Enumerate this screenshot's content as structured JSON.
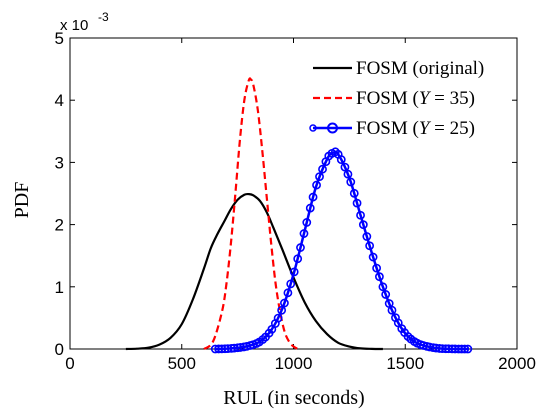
{
  "chart_data": {
    "type": "line",
    "xlabel": "RUL (in seconds)",
    "ylabel": "PDF",
    "xlim": [
      0,
      2000
    ],
    "ylim": [
      0,
      5
    ],
    "y_multiplier_label": "x 10",
    "y_multiplier_exponent": "-3",
    "xticks": [
      0,
      500,
      1000,
      1500,
      2000
    ],
    "yticks": [
      0,
      1,
      2,
      3,
      4,
      5
    ],
    "grid": false,
    "legend_position": "top-right",
    "series": [
      {
        "name": "FOSM (original)",
        "color": "#000000",
        "dash": "solid",
        "marker": "none",
        "x": [
          250,
          300,
          350,
          400,
          450,
          500,
          550,
          600,
          630,
          660,
          690,
          720,
          750,
          780,
          800,
          820,
          850,
          880,
          910,
          950,
          1000,
          1050,
          1100,
          1150,
          1200,
          1250,
          1300,
          1350,
          1400
        ],
        "y": [
          0.0,
          0.005,
          0.02,
          0.07,
          0.18,
          0.4,
          0.8,
          1.3,
          1.62,
          1.85,
          2.05,
          2.25,
          2.4,
          2.48,
          2.49,
          2.47,
          2.38,
          2.2,
          1.95,
          1.6,
          1.15,
          0.75,
          0.45,
          0.24,
          0.1,
          0.04,
          0.01,
          0.002,
          0.0
        ]
      },
      {
        "name": "FOSM (Y = 35)",
        "name_parts": [
          "FOSM (",
          "Y",
          " = 35)"
        ],
        "color": "#ff0000",
        "dash": "dashed",
        "marker": "none",
        "x": [
          600,
          640,
          680,
          700,
          720,
          740,
          760,
          780,
          800,
          810,
          820,
          840,
          860,
          880,
          900,
          920,
          940,
          960,
          980,
          1000,
          1020
        ],
        "y": [
          0.0,
          0.12,
          0.6,
          1.05,
          1.7,
          2.5,
          3.35,
          4.0,
          4.32,
          4.33,
          4.25,
          3.85,
          3.2,
          2.45,
          1.7,
          1.05,
          0.6,
          0.28,
          0.12,
          0.04,
          0.0
        ]
      },
      {
        "name": "FOSM (Y = 25)",
        "name_parts": [
          "FOSM (",
          "Y",
          " = 25)"
        ],
        "color": "#0000ff",
        "dash": "solid",
        "marker": "circle",
        "x": [
          650,
          700,
          750,
          800,
          850,
          900,
          950,
          1000,
          1050,
          1100,
          1150,
          1175,
          1200,
          1250,
          1300,
          1350,
          1400,
          1450,
          1500,
          1550,
          1600,
          1650,
          1700,
          1750,
          1780
        ],
        "y": [
          0.0,
          0.005,
          0.02,
          0.05,
          0.12,
          0.3,
          0.65,
          1.2,
          1.9,
          2.6,
          3.05,
          3.15,
          3.13,
          2.75,
          2.15,
          1.55,
          1.0,
          0.55,
          0.25,
          0.1,
          0.04,
          0.01,
          0.003,
          0.0,
          0.0
        ]
      }
    ]
  }
}
